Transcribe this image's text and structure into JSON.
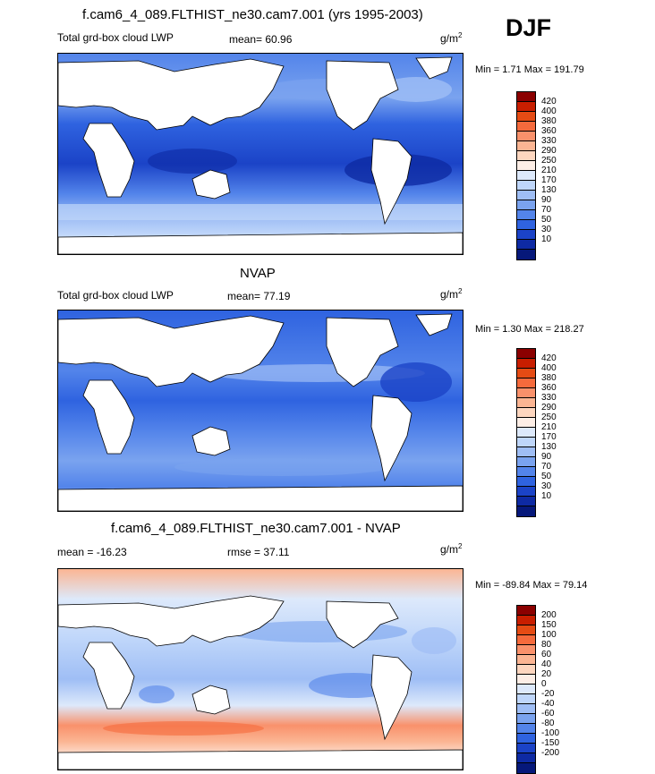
{
  "season": "DJF",
  "colors": {
    "lwp_scale": [
      "#8b0000",
      "#c81e00",
      "#e54b14",
      "#f56a3c",
      "#f9916b",
      "#fbb593",
      "#fdd6bf",
      "#fdeee6",
      "#dde9fb",
      "#bfd6fa",
      "#9fbef5",
      "#7aa3ef",
      "#5384ea",
      "#2f63e0",
      "#1b43c7",
      "#0e2aa3",
      "#06187a"
    ],
    "diff_scale": [
      "#8b0000",
      "#c81e00",
      "#e54b14",
      "#f56a3c",
      "#f9916b",
      "#fbb593",
      "#fdd6bf",
      "#fdeee6",
      "#dde9fb",
      "#bfd6fa",
      "#9fbef5",
      "#7aa3ef",
      "#5384ea",
      "#2f63e0",
      "#1b43c7",
      "#0e2aa3",
      "#06187a"
    ]
  },
  "panels": [
    {
      "id": "model",
      "title": "f.cam6_4_089.FLTHIST_ne30.cam7.001 (yrs 1995-2003)",
      "left_label": "Total grd-box cloud LWP",
      "center_label": "mean=  60.96",
      "units": "g/m",
      "units_sup": "2",
      "minmax": "Min =   1.71 Max = 191.79",
      "colorbar_labels": [
        "420",
        "400",
        "380",
        "360",
        "330",
        "290",
        "250",
        "210",
        "170",
        "130",
        "90",
        "70",
        "50",
        "30",
        "10"
      ]
    },
    {
      "id": "obs",
      "title": "NVAP",
      "left_label": "Total grd-box cloud LWP",
      "center_label": "mean=  77.19",
      "units": "g/m",
      "units_sup": "2",
      "minmax": "Min =   1.30 Max = 218.27",
      "colorbar_labels": [
        "420",
        "400",
        "380",
        "360",
        "330",
        "290",
        "250",
        "210",
        "170",
        "130",
        "90",
        "70",
        "50",
        "30",
        "10"
      ]
    },
    {
      "id": "diff",
      "title": "f.cam6_4_089.FLTHIST_ne30.cam7.001 - NVAP",
      "left_label": "mean = -16.23",
      "center_label": "rmse =  37.11",
      "units": "g/m",
      "units_sup": "2",
      "minmax": "Min = -89.84 Max =  79.14",
      "colorbar_labels": [
        "200",
        "150",
        "100",
        "80",
        "60",
        "40",
        "20",
        "0",
        "-20",
        "-40",
        "-60",
        "-80",
        "-100",
        "-150",
        "-200"
      ]
    }
  ]
}
